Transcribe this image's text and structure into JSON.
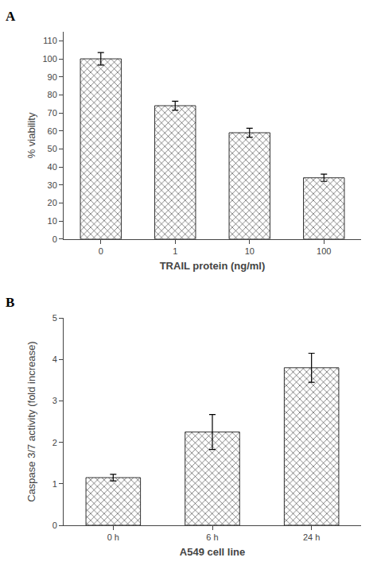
{
  "chart_data": [
    {
      "type": "bar",
      "title": "A",
      "categories": [
        "0",
        "1",
        "10",
        "100"
      ],
      "values": [
        100,
        74,
        59,
        34
      ],
      "errors": [
        3.5,
        2.5,
        2.5,
        2.0
      ],
      "xlabel": "TRAIL protein (ng/ml)",
      "ylabel": "% viability",
      "ylim": [
        0,
        115
      ],
      "yticks": [
        0,
        10,
        20,
        30,
        40,
        50,
        60,
        70,
        80,
        90,
        100,
        110
      ],
      "color": "#d4d4d4",
      "grid": false
    },
    {
      "type": "bar",
      "title": "B",
      "categories": [
        "0 h",
        "6 h",
        "24 h"
      ],
      "values": [
        1.15,
        2.25,
        3.8
      ],
      "errors": [
        0.08,
        0.42,
        0.35
      ],
      "xlabel": "A549 cell line",
      "ylabel": "Caspase 3/7 activity (fold increase)",
      "ylim": [
        0,
        5
      ],
      "yticks": [
        0,
        1,
        2,
        3,
        4,
        5
      ],
      "color": "#d4d4d4",
      "grid": false
    }
  ]
}
